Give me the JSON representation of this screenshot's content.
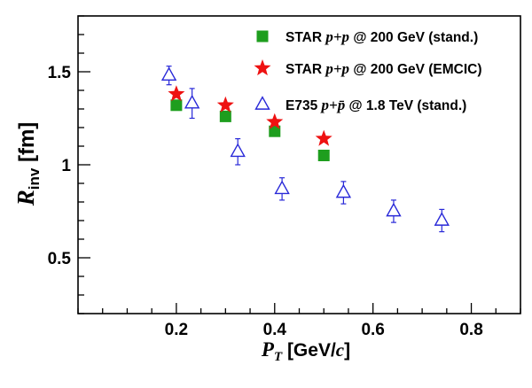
{
  "chart_data": {
    "type": "scatter",
    "xlabel": {
      "main": "P",
      "sub": "T",
      "unit_pre": " [GeV/",
      "unit_ital": "c",
      "unit_post": "]"
    },
    "ylabel": {
      "main": "R",
      "sub": "inv",
      "unit": " [fm]"
    },
    "xlim": [
      0,
      0.9
    ],
    "ylim": [
      0.2,
      1.8
    ],
    "x_ticks": [
      0.2,
      0.4,
      0.6,
      0.8
    ],
    "x_tick_labels": [
      "0.2",
      "0.4",
      "0.6",
      "0.8"
    ],
    "y_ticks": [
      0.5,
      1.0,
      1.5
    ],
    "y_tick_labels": [
      "0.5",
      "1",
      "1.5"
    ],
    "grid": false,
    "legend_position": "top-right",
    "series": [
      {
        "name": "STAR p+p @ 200 GeV (stand.)",
        "legend": {
          "pre": "STAR ",
          "ital": "p+p",
          "post": " @ 200 GeV (stand.)"
        },
        "marker": "filled-square",
        "color": "#1e9e1e",
        "x": [
          0.2,
          0.3,
          0.4,
          0.5
        ],
        "y": [
          1.32,
          1.26,
          1.18,
          1.05
        ],
        "yerr": [
          0.0,
          0.0,
          0.0,
          0.0
        ]
      },
      {
        "name": "STAR p+p @ 200 GeV (EMCIC)",
        "legend": {
          "pre": "STAR ",
          "ital": "p+p",
          "post": " @ 200 GeV (EMCIC)"
        },
        "marker": "filled-star",
        "color": "#ee1111",
        "x": [
          0.2,
          0.3,
          0.4,
          0.5
        ],
        "y": [
          1.38,
          1.32,
          1.23,
          1.14
        ],
        "yerr": [
          0.0,
          0.0,
          0.0,
          0.0
        ]
      },
      {
        "name": "E735 p+p̄ @ 1.8 TeV (stand.)",
        "legend": {
          "pre": "E735 ",
          "ital": "p+p̄",
          "post": " @ 1.8 TeV (stand.)"
        },
        "marker": "open-triangle",
        "color": "#2828d8",
        "x": [
          0.185,
          0.232,
          0.325,
          0.415,
          0.54,
          0.642,
          0.74
        ],
        "y": [
          1.48,
          1.33,
          1.07,
          0.87,
          0.85,
          0.75,
          0.7
        ],
        "yerr": [
          0.05,
          0.08,
          0.07,
          0.06,
          0.06,
          0.06,
          0.06
        ]
      }
    ]
  }
}
